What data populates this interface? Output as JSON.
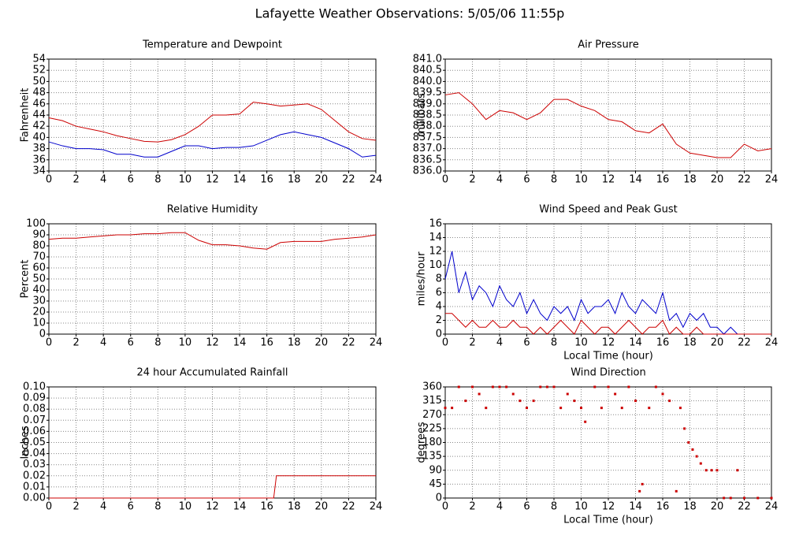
{
  "title": "Lafayette Weather Observations: 5/05/06 11:55p",
  "chart_data": [
    {
      "type": "line",
      "title": "Temperature and Dewpoint",
      "ylabel": "Fahrenheit",
      "grid": true,
      "x": [
        0,
        1,
        2,
        3,
        4,
        5,
        6,
        7,
        8,
        9,
        10,
        11,
        12,
        13,
        14,
        15,
        16,
        17,
        18,
        19,
        20,
        21,
        22,
        23,
        24
      ],
      "series": [
        {
          "color": "#cc0000",
          "values": [
            43.5,
            43,
            42,
            41.5,
            41,
            40.3,
            39.8,
            39.3,
            39.2,
            39.6,
            40.5,
            42,
            44,
            44,
            44.2,
            46.3,
            46,
            45.6,
            45.8,
            46,
            45,
            43,
            41,
            39.8,
            39.5
          ]
        },
        {
          "color": "#0000cc",
          "values": [
            39.2,
            38.5,
            38,
            38,
            37.8,
            37,
            37,
            36.5,
            36.5,
            37.5,
            38.5,
            38.5,
            38,
            38.2,
            38.2,
            38.5,
            39.5,
            40.5,
            41,
            40.5,
            40,
            39,
            38,
            36.5,
            36.8
          ]
        }
      ],
      "xlim": [
        0,
        24
      ],
      "xticks": [
        0,
        2,
        4,
        6,
        8,
        10,
        12,
        14,
        16,
        18,
        20,
        22,
        24
      ],
      "ylim": [
        34,
        54
      ],
      "yticks": [
        34,
        36,
        38,
        40,
        42,
        44,
        46,
        48,
        50,
        52,
        54
      ]
    },
    {
      "type": "line",
      "title": "Air Pressure",
      "ylabel": "millibars",
      "grid": true,
      "x": [
        0,
        1,
        2,
        3,
        4,
        5,
        6,
        7,
        8,
        9,
        10,
        11,
        12,
        13,
        14,
        15,
        16,
        17,
        18,
        19,
        20,
        21,
        22,
        23,
        24
      ],
      "series": [
        {
          "color": "#cc0000",
          "values": [
            839.4,
            839.5,
            839.0,
            838.3,
            838.7,
            838.6,
            838.3,
            838.6,
            839.2,
            839.2,
            838.9,
            838.7,
            838.3,
            838.2,
            837.8,
            837.7,
            838.1,
            837.2,
            836.8,
            836.7,
            836.6,
            836.6,
            837.2,
            836.9,
            837.0
          ]
        }
      ],
      "xlim": [
        0,
        24
      ],
      "xticks": [
        0,
        2,
        4,
        6,
        8,
        10,
        12,
        14,
        16,
        18,
        20,
        22,
        24
      ],
      "ylim": [
        836,
        841
      ],
      "yticks": [
        {
          "value": 836,
          "label": "836.0"
        },
        836.5,
        {
          "value": 837,
          "label": "837.0"
        },
        837.5,
        {
          "value": 838,
          "label": "838.0"
        },
        838.5,
        {
          "value": 839,
          "label": "839.0"
        },
        839.5,
        {
          "value": 840,
          "label": "840.0"
        },
        840.5,
        {
          "value": 841,
          "label": "841.0"
        }
      ]
    },
    {
      "type": "line",
      "title": "Relative Humidity",
      "ylabel": "Percent",
      "grid": true,
      "x": [
        0,
        1,
        2,
        3,
        4,
        5,
        6,
        7,
        8,
        9,
        10,
        11,
        12,
        13,
        14,
        15,
        16,
        17,
        18,
        19,
        20,
        21,
        22,
        23,
        24
      ],
      "series": [
        {
          "color": "#cc0000",
          "values": [
            86,
            87,
            87,
            88,
            89,
            90,
            90,
            91,
            91,
            92,
            92,
            85,
            81,
            81,
            80,
            78,
            77,
            83,
            84,
            84,
            84,
            86,
            87,
            88,
            90
          ]
        }
      ],
      "xlim": [
        0,
        24
      ],
      "xticks": [
        0,
        2,
        4,
        6,
        8,
        10,
        12,
        14,
        16,
        18,
        20,
        22,
        24
      ],
      "ylim": [
        0,
        100
      ],
      "yticks": [
        0,
        10,
        20,
        30,
        40,
        50,
        60,
        70,
        80,
        90,
        100
      ]
    },
    {
      "type": "line",
      "title": "Wind Speed and Peak Gust",
      "ylabel": "miles/hour",
      "xlabel": "Local Time (hour)",
      "grid": true,
      "x": [
        0,
        0.5,
        1,
        1.5,
        2,
        2.5,
        3,
        3.5,
        4,
        4.5,
        5,
        5.5,
        6,
        6.5,
        7,
        7.5,
        8,
        8.5,
        9,
        9.5,
        10,
        10.5,
        11,
        11.5,
        12,
        12.5,
        13,
        13.5,
        14,
        14.5,
        15,
        15.5,
        16,
        16.5,
        17,
        17.5,
        18,
        18.5,
        19,
        19.5,
        20,
        20.5,
        21,
        21.5,
        22,
        23,
        24
      ],
      "series": [
        {
          "color": "#0000cc",
          "values": [
            8,
            12,
            6,
            9,
            5,
            7,
            6,
            4,
            7,
            5,
            4,
            6,
            3,
            5,
            3,
            2,
            4,
            3,
            4,
            2,
            5,
            3,
            4,
            4,
            5,
            3,
            6,
            4,
            3,
            5,
            4,
            3,
            6,
            2,
            3,
            1,
            3,
            2,
            3,
            1,
            1,
            0,
            1,
            0,
            0,
            0,
            0
          ]
        },
        {
          "color": "#cc0000",
          "values": [
            3,
            3,
            2,
            1,
            2,
            1,
            1,
            2,
            1,
            1,
            2,
            1,
            1,
            0,
            1,
            0,
            1,
            2,
            1,
            0,
            2,
            1,
            0,
            1,
            1,
            0,
            1,
            2,
            1,
            0,
            1,
            1,
            2,
            0,
            1,
            0,
            0,
            1,
            0,
            0,
            0,
            0,
            0,
            0,
            0,
            0,
            0
          ]
        }
      ],
      "xlim": [
        0,
        24
      ],
      "xticks": [
        0,
        2,
        4,
        6,
        8,
        10,
        12,
        14,
        16,
        18,
        20,
        22,
        24
      ],
      "ylim": [
        0,
        16
      ],
      "yticks": [
        0,
        2,
        4,
        6,
        8,
        10,
        12,
        14,
        16
      ]
    },
    {
      "type": "line",
      "title": "24 hour Accumulated Rainfall",
      "ylabel": "Inches",
      "grid": true,
      "x": [
        0,
        16.5,
        16.7,
        24
      ],
      "series": [
        {
          "color": "#cc0000",
          "values": [
            0,
            0,
            0.02,
            0.02
          ]
        }
      ],
      "xlim": [
        0,
        24
      ],
      "xticks": [
        0,
        2,
        4,
        6,
        8,
        10,
        12,
        14,
        16,
        18,
        20,
        22,
        24
      ],
      "ylim": [
        0,
        0.1
      ],
      "yticks": [
        {
          "value": 0,
          "label": "0.00"
        },
        0.01,
        0.02,
        0.03,
        0.04,
        0.05,
        0.06,
        0.07,
        0.08,
        0.09,
        {
          "value": 0.1,
          "label": "0.10"
        }
      ]
    },
    {
      "type": "scatter",
      "title": "Wind Direction",
      "ylabel": "degrees",
      "xlabel": "Local Time (hour)",
      "grid": true,
      "color": "#cc0000",
      "x": [
        0,
        0.5,
        1,
        1.5,
        2,
        2.5,
        3,
        3.5,
        4,
        4.5,
        5,
        5.5,
        6,
        6.5,
        7,
        7.5,
        8,
        8.5,
        9,
        9.5,
        10,
        10.3,
        11,
        11.5,
        12,
        12.5,
        13,
        13.5,
        14,
        14.3,
        14.5,
        15,
        15.5,
        16,
        16.5,
        17,
        17.3,
        17.6,
        17.9,
        18.2,
        18.5,
        18.8,
        19.2,
        19.6,
        20,
        20.5,
        21,
        21.5,
        22,
        23,
        24
      ],
      "values": [
        292,
        292,
        360,
        315,
        360,
        337,
        292,
        360,
        360,
        360,
        337,
        315,
        292,
        315,
        360,
        360,
        360,
        292,
        337,
        315,
        292,
        247,
        360,
        292,
        360,
        337,
        292,
        360,
        315,
        22,
        45,
        292,
        360,
        337,
        315,
        22,
        292,
        225,
        180,
        157,
        135,
        112,
        90,
        90,
        90,
        0,
        0,
        90,
        0,
        0,
        0
      ],
      "xlim": [
        0,
        24
      ],
      "xticks": [
        0,
        2,
        4,
        6,
        8,
        10,
        12,
        14,
        16,
        18,
        20,
        22,
        24
      ],
      "ylim": [
        0,
        360
      ],
      "yticks": [
        0,
        45,
        90,
        135,
        180,
        225,
        270,
        315,
        360
      ]
    }
  ]
}
